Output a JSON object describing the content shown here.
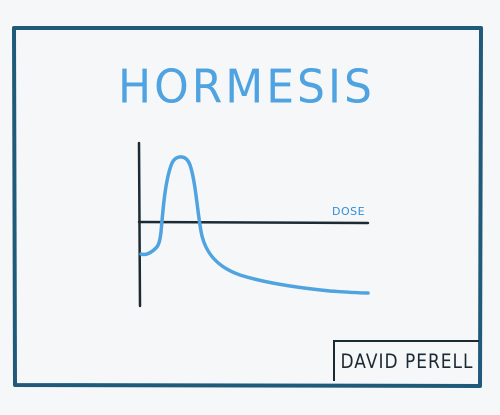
{
  "title": "HORMESIS",
  "axis": {
    "x_label": "DOSE"
  },
  "credit": "DAVID PERELL",
  "colors": {
    "frame": "#1f5a7a",
    "axes": "#1c2a33",
    "curve": "#4fa3e0",
    "title": "#4fa3e0",
    "label": "#2f8fd6",
    "background": "#f6f7f8"
  }
}
